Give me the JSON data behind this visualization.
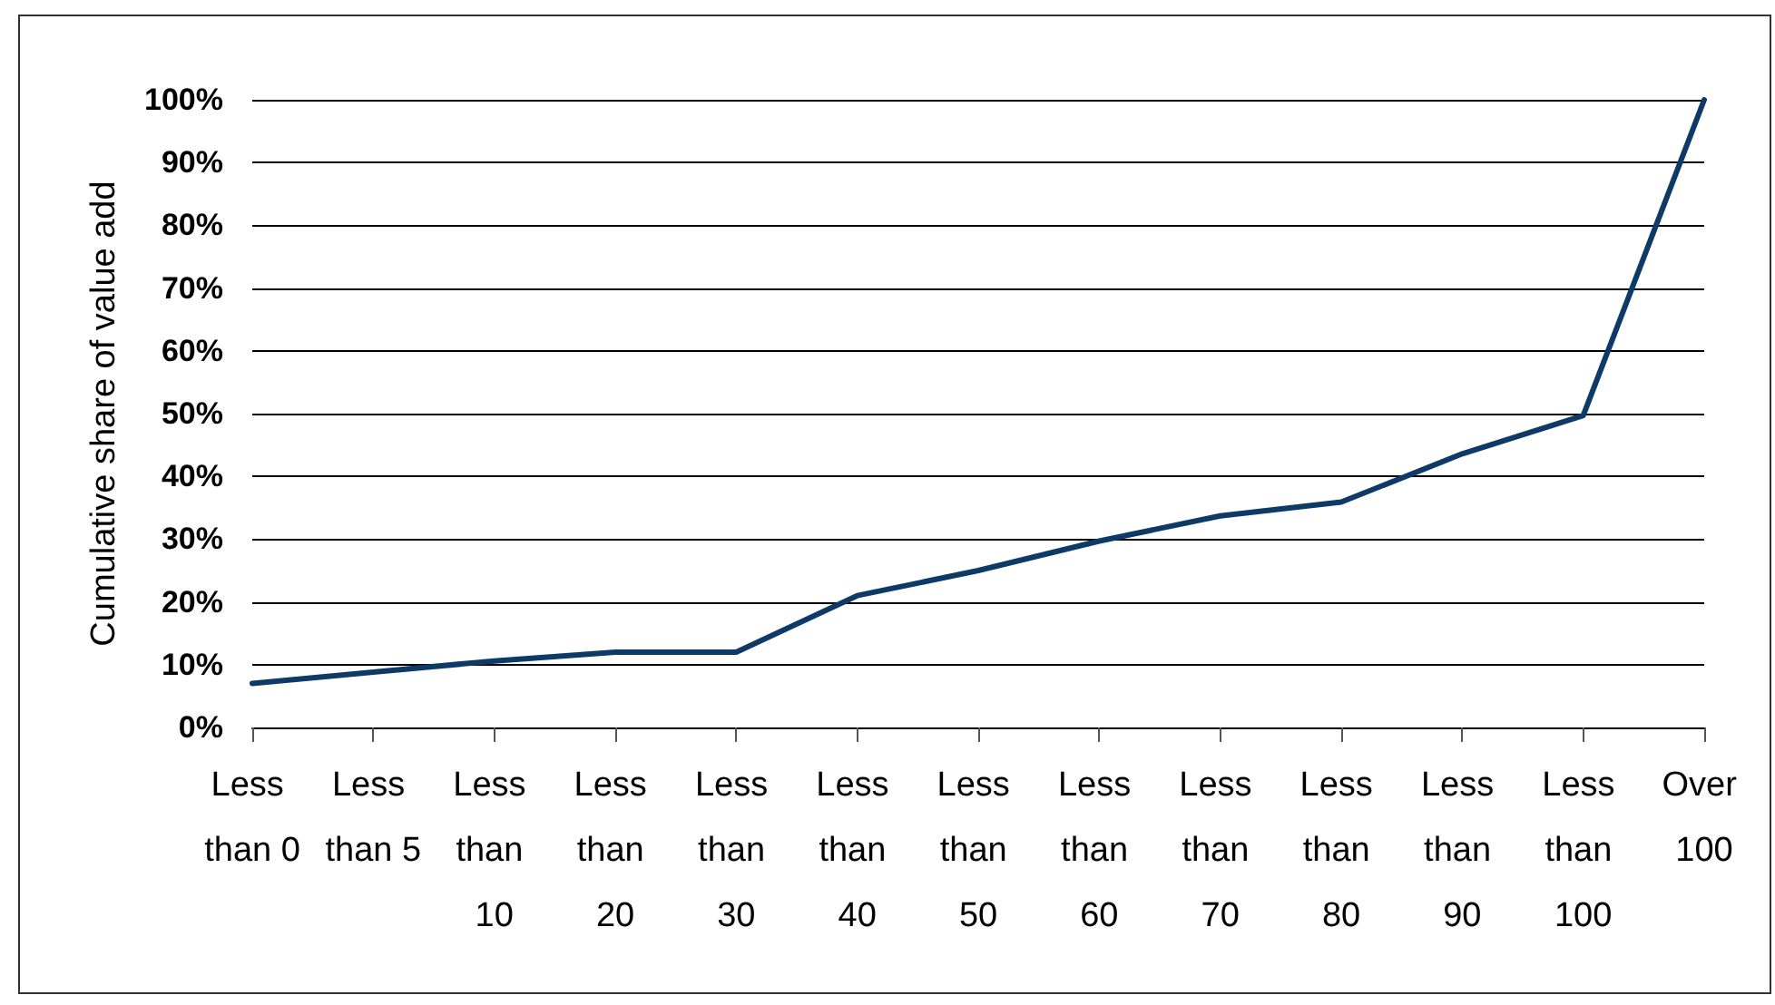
{
  "chart_data": {
    "type": "line",
    "ylabel": "Cumulative share of value add",
    "categories": [
      "Less than 0",
      "Less than 5",
      "Less than 10",
      "Less than 20",
      "Less than 30",
      "Less than 40",
      "Less than 50",
      "Less than 60",
      "Less than 70",
      "Less than 80",
      "Less than 90",
      "Less than 100",
      "Over 100"
    ],
    "series": [
      {
        "color": "#0d3a66",
        "values": [
          7,
          8.8,
          10.6,
          12,
          12,
          21,
          25,
          29.7,
          33.7,
          35.9,
          43.6,
          49.7,
          100
        ]
      }
    ],
    "ylim": [
      0,
      100
    ],
    "yticks": [
      {
        "value": 0,
        "label": "0%"
      },
      {
        "value": 10,
        "label": "10%"
      },
      {
        "value": 20,
        "label": "20%"
      },
      {
        "value": 30,
        "label": "30%"
      },
      {
        "value": 40,
        "label": "40%"
      },
      {
        "value": 50,
        "label": "50%"
      },
      {
        "value": 60,
        "label": "60%"
      },
      {
        "value": 70,
        "label": "70%"
      },
      {
        "value": 80,
        "label": "80%"
      },
      {
        "value": 90,
        "label": "90%"
      },
      {
        "value": 100,
        "label": "100%"
      }
    ],
    "grid": "y",
    "marker": "none",
    "line_style": "solid"
  }
}
